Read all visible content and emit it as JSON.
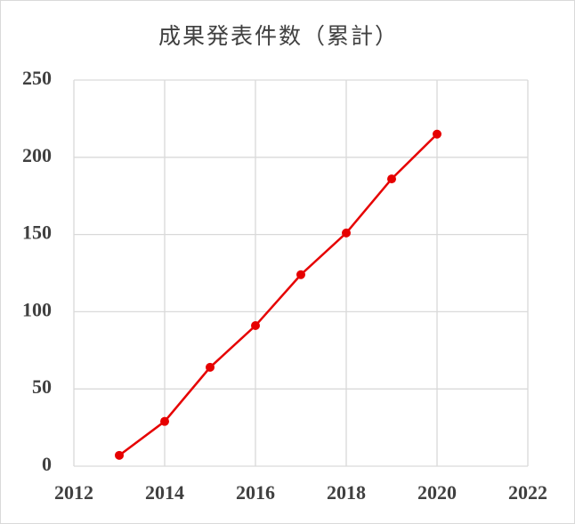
{
  "chart_data": {
    "type": "line",
    "title": "成果発表件数（累計）",
    "x": [
      2013,
      2014,
      2015,
      2016,
      2017,
      2018,
      2019,
      2020
    ],
    "series": [
      {
        "name": "成果発表件数",
        "color": "#e60000",
        "values": [
          7,
          29,
          64,
          91,
          124,
          151,
          186,
          215
        ]
      }
    ],
    "xlim": [
      2012,
      2022
    ],
    "xticks": [
      2012,
      2014,
      2016,
      2018,
      2020,
      2022
    ],
    "ylim": [
      0,
      250
    ],
    "yticks": [
      0,
      50,
      100,
      150,
      200,
      250
    ],
    "grid": true
  }
}
